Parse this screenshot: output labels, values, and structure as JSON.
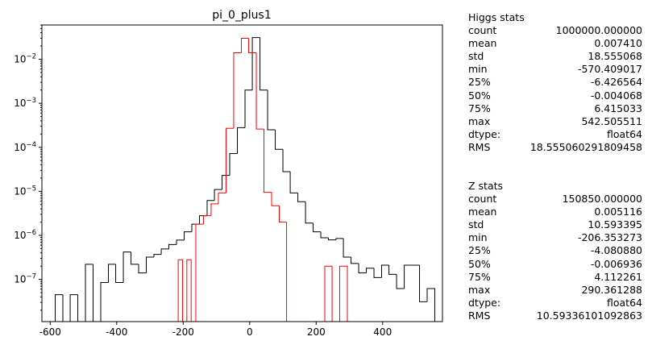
{
  "chart_data": {
    "type": "histogram",
    "title": "pi_0_plus1",
    "xlabel": "",
    "ylabel": "",
    "xlim": [
      -625,
      580
    ],
    "ylim": [
      1.1e-08,
      0.06
    ],
    "yscale": "log",
    "xticks": [
      -600,
      -400,
      -200,
      0,
      200,
      400
    ],
    "yticks": [
      1e-07,
      1e-06,
      1e-05,
      0.0001,
      0.001,
      0.01
    ],
    "ytick_labels": [
      {
        "base": "10",
        "exp": "−7"
      },
      {
        "base": "10",
        "exp": "−6"
      },
      {
        "base": "10",
        "exp": "−5"
      },
      {
        "base": "10",
        "exp": "−4"
      },
      {
        "base": "10",
        "exp": "−3"
      },
      {
        "base": "10",
        "exp": "−2"
      }
    ],
    "grid": false,
    "legend": false,
    "series": [
      {
        "color": "#000000",
        "edges": [
          -585,
          -562,
          -540,
          -517,
          -494,
          -471,
          -448,
          -425,
          -403,
          -380,
          -357,
          -334,
          -311,
          -288,
          -266,
          -243,
          -220,
          -197,
          -174,
          -151,
          -128,
          -106,
          -83,
          -60,
          -37,
          -14,
          8,
          31,
          54,
          77,
          100,
          122,
          145,
          168,
          191,
          214,
          237,
          260,
          282,
          305,
          328,
          351,
          374,
          397,
          419,
          442,
          465,
          488,
          511,
          534,
          557
        ],
        "values": [
          4.5e-08,
          1.1e-08,
          4.5e-08,
          1.1e-08,
          2.2e-07,
          1.1e-08,
          8.5e-08,
          2.2e-07,
          8.5e-08,
          4.2e-07,
          2.2e-07,
          1.4e-07,
          3.2e-07,
          3.7e-07,
          4.9e-07,
          6.2e-07,
          7.8e-07,
          1.2e-06,
          1.8e-06,
          2.8e-06,
          6.2e-06,
          1.1e-05,
          2.3e-05,
          7.2e-05,
          0.00028,
          0.002,
          0.031,
          0.002,
          0.00025,
          9e-05,
          2.8e-05,
          9.2e-06,
          5.8e-06,
          1.9e-06,
          1.2e-06,
          8.8e-07,
          7.9e-07,
          8.5e-07,
          3.2e-07,
          2.3e-07,
          1.4e-07,
          1.8e-07,
          1.1e-07,
          2.1e-07,
          1.3e-07,
          6.2e-08,
          2.1e-07,
          2.1e-07,
          3.1e-08,
          6.2e-08
        ]
      },
      {
        "color": "#ff0000",
        "edges": [
          -215,
          -202,
          -189,
          -176,
          -162,
          -139,
          -116,
          -94,
          -71,
          -48,
          -25,
          -3,
          20,
          43,
          66,
          89,
          111,
          134,
          157,
          180,
          203,
          226,
          248,
          271,
          294
        ],
        "values": [
          2.8e-07,
          1.1e-08,
          2.8e-07,
          1.1e-08,
          1.8e-06,
          2.8e-06,
          5.2e-06,
          9.2e-06,
          0.00027,
          0.014,
          0.03,
          0.014,
          0.00026,
          9.5e-06,
          4.7e-06,
          2e-06,
          1.1e-08,
          1.1e-08,
          1.1e-08,
          1.1e-08,
          1.1e-08,
          2e-07,
          1.1e-08,
          2e-07
        ]
      }
    ]
  },
  "higgs_stats": {
    "title": "Higgs stats",
    "rows": [
      {
        "label": "count",
        "value": "1000000.000000"
      },
      {
        "label": "mean",
        "value": "0.007410"
      },
      {
        "label": "std",
        "value": "18.555068"
      },
      {
        "label": "min",
        "value": "-570.409017"
      },
      {
        "label": "25%",
        "value": "-6.426564"
      },
      {
        "label": "50%",
        "value": "-0.004068"
      },
      {
        "label": "75%",
        "value": "6.415033"
      },
      {
        "label": "max",
        "value": "542.505511"
      },
      {
        "label": "dtype:",
        "value": "float64"
      },
      {
        "label": "RMS",
        "value": "18.555060291809458"
      }
    ]
  },
  "z_stats": {
    "title": "Z stats",
    "rows": [
      {
        "label": "count",
        "value": "150850.000000"
      },
      {
        "label": "mean",
        "value": "0.005116"
      },
      {
        "label": "std",
        "value": "10.593395"
      },
      {
        "label": "min",
        "value": "-206.353273"
      },
      {
        "label": "25%",
        "value": "-4.080880"
      },
      {
        "label": "50%",
        "value": "-0.006936"
      },
      {
        "label": "75%",
        "value": "4.112261"
      },
      {
        "label": "max",
        "value": "290.361288"
      },
      {
        "label": "dtype:",
        "value": "float64"
      },
      {
        "label": "RMS",
        "value": "10.59336101092863"
      }
    ]
  }
}
